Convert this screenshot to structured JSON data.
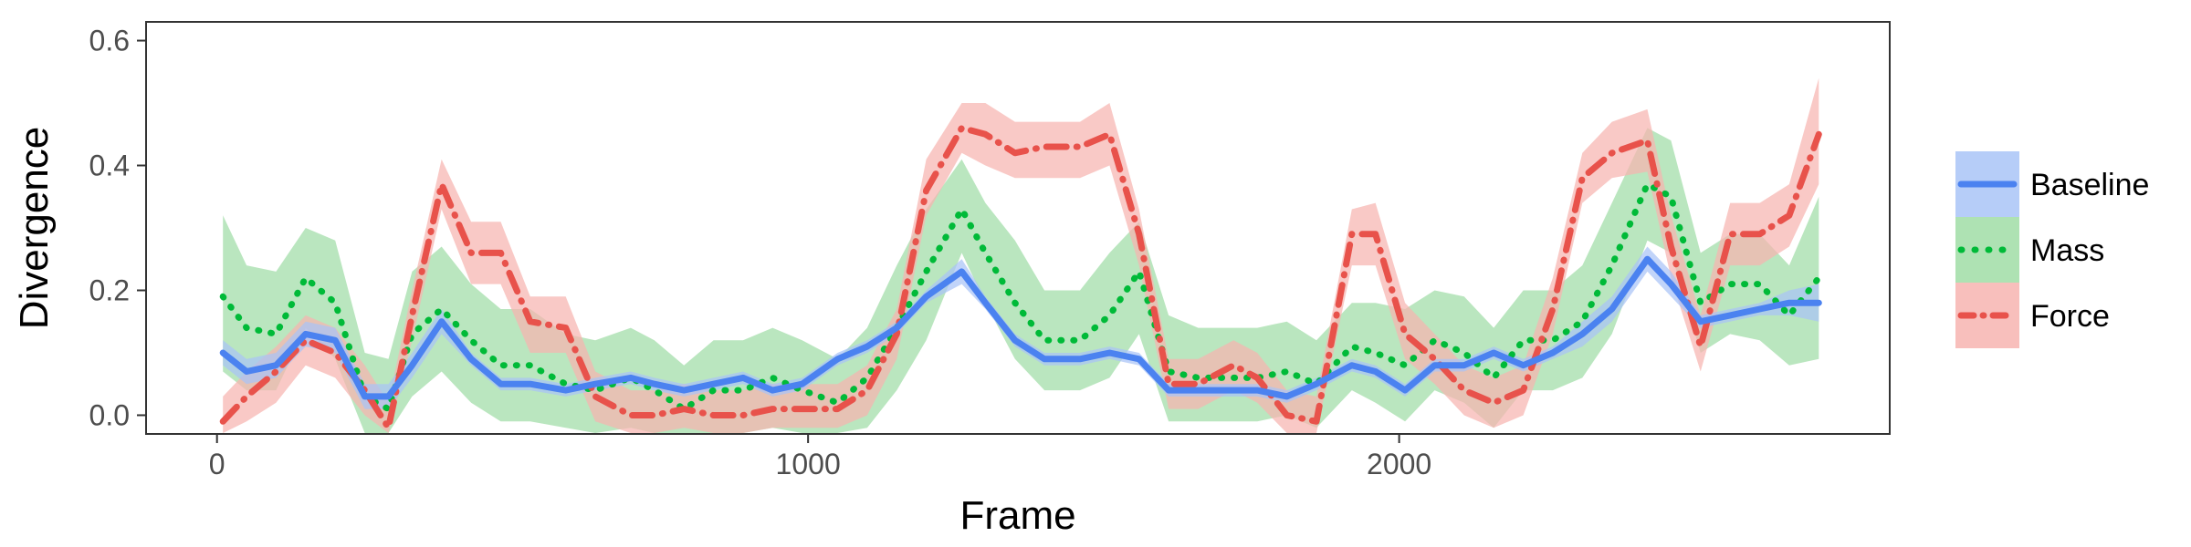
{
  "chart_data": {
    "type": "line",
    "xlabel": "Frame",
    "ylabel": "Divergence",
    "xlim": [
      -120,
      2830
    ],
    "ylim": [
      -0.03,
      0.63
    ],
    "xticks": [
      0,
      1000,
      2000
    ],
    "yticks": [
      0.0,
      0.2,
      0.4,
      0.6
    ],
    "xtick_labels": [
      "0",
      "1000",
      "2000"
    ],
    "ytick_labels": [
      "0.0",
      "0.2",
      "0.4",
      "0.6"
    ],
    "grid": false,
    "legend_position": "right",
    "x": [
      10,
      50,
      100,
      150,
      200,
      250,
      290,
      330,
      380,
      430,
      480,
      530,
      590,
      640,
      700,
      740,
      790,
      840,
      890,
      940,
      990,
      1050,
      1100,
      1150,
      1200,
      1260,
      1300,
      1350,
      1400,
      1460,
      1510,
      1560,
      1610,
      1660,
      1720,
      1760,
      1810,
      1860,
      1920,
      1960,
      2010,
      2060,
      2110,
      2160,
      2210,
      2260,
      2310,
      2360,
      2420,
      2460,
      2510,
      2560,
      2610,
      2660,
      2710
    ],
    "series": [
      {
        "name": "Baseline",
        "color": "#4B82F0",
        "band_color": "#A9C4F7",
        "dash": "solid",
        "values": [
          0.1,
          0.07,
          0.08,
          0.13,
          0.12,
          0.03,
          0.03,
          0.08,
          0.15,
          0.09,
          0.05,
          0.05,
          0.04,
          0.05,
          0.06,
          0.05,
          0.04,
          0.05,
          0.06,
          0.04,
          0.05,
          0.09,
          0.11,
          0.14,
          0.19,
          0.23,
          0.18,
          0.12,
          0.09,
          0.09,
          0.1,
          0.09,
          0.04,
          0.04,
          0.04,
          0.04,
          0.03,
          0.05,
          0.08,
          0.07,
          0.04,
          0.08,
          0.08,
          0.1,
          0.08,
          0.1,
          0.13,
          0.17,
          0.25,
          0.21,
          0.15,
          0.16,
          0.17,
          0.18,
          0.18
        ],
        "lower": [
          0.08,
          0.05,
          0.06,
          0.11,
          0.1,
          0.01,
          0.01,
          0.06,
          0.13,
          0.08,
          0.04,
          0.04,
          0.03,
          0.04,
          0.05,
          0.04,
          0.03,
          0.04,
          0.05,
          0.03,
          0.04,
          0.08,
          0.1,
          0.13,
          0.18,
          0.21,
          0.17,
          0.11,
          0.08,
          0.08,
          0.09,
          0.08,
          0.03,
          0.03,
          0.03,
          0.03,
          0.02,
          0.04,
          0.07,
          0.06,
          0.03,
          0.07,
          0.07,
          0.09,
          0.07,
          0.09,
          0.11,
          0.15,
          0.23,
          0.19,
          0.14,
          0.15,
          0.16,
          0.16,
          0.15
        ],
        "upper": [
          0.12,
          0.09,
          0.1,
          0.15,
          0.14,
          0.05,
          0.05,
          0.1,
          0.17,
          0.1,
          0.06,
          0.06,
          0.05,
          0.06,
          0.07,
          0.06,
          0.05,
          0.06,
          0.07,
          0.05,
          0.06,
          0.1,
          0.12,
          0.15,
          0.2,
          0.25,
          0.19,
          0.13,
          0.1,
          0.1,
          0.11,
          0.1,
          0.05,
          0.05,
          0.05,
          0.05,
          0.04,
          0.06,
          0.09,
          0.08,
          0.05,
          0.09,
          0.09,
          0.11,
          0.09,
          0.11,
          0.15,
          0.19,
          0.27,
          0.23,
          0.16,
          0.17,
          0.18,
          0.2,
          0.21
        ]
      },
      {
        "name": "Mass",
        "color": "#00BA38",
        "band_color": "#A0DDA6",
        "dash": "dotted",
        "values": [
          0.19,
          0.14,
          0.13,
          0.22,
          0.18,
          0.03,
          0.01,
          0.13,
          0.17,
          0.12,
          0.08,
          0.08,
          0.05,
          0.04,
          0.06,
          0.04,
          0.01,
          0.04,
          0.04,
          0.06,
          0.04,
          0.02,
          0.06,
          0.14,
          0.23,
          0.33,
          0.26,
          0.18,
          0.12,
          0.12,
          0.16,
          0.23,
          0.07,
          0.06,
          0.06,
          0.06,
          0.07,
          0.05,
          0.11,
          0.1,
          0.08,
          0.12,
          0.1,
          0.06,
          0.12,
          0.12,
          0.15,
          0.24,
          0.37,
          0.35,
          0.18,
          0.21,
          0.21,
          0.16,
          0.22
        ],
        "lower": [
          0.07,
          0.04,
          0.04,
          0.14,
          0.09,
          -0.03,
          -0.03,
          0.03,
          0.07,
          0.02,
          -0.01,
          -0.01,
          -0.02,
          -0.03,
          -0.02,
          -0.03,
          -0.03,
          -0.03,
          -0.03,
          -0.02,
          -0.03,
          -0.03,
          -0.02,
          0.04,
          0.12,
          0.26,
          0.18,
          0.09,
          0.04,
          0.04,
          0.06,
          0.13,
          -0.01,
          -0.01,
          -0.01,
          -0.01,
          0.0,
          -0.02,
          0.04,
          0.02,
          -0.01,
          0.04,
          0.02,
          -0.02,
          0.04,
          0.04,
          0.06,
          0.13,
          0.28,
          0.26,
          0.1,
          0.13,
          0.12,
          0.08,
          0.09
        ],
        "upper": [
          0.32,
          0.24,
          0.23,
          0.3,
          0.28,
          0.1,
          0.09,
          0.23,
          0.27,
          0.21,
          0.17,
          0.17,
          0.13,
          0.12,
          0.14,
          0.12,
          0.08,
          0.12,
          0.12,
          0.14,
          0.12,
          0.09,
          0.14,
          0.24,
          0.33,
          0.41,
          0.34,
          0.28,
          0.2,
          0.2,
          0.26,
          0.31,
          0.16,
          0.14,
          0.14,
          0.14,
          0.15,
          0.12,
          0.18,
          0.18,
          0.17,
          0.2,
          0.19,
          0.14,
          0.2,
          0.2,
          0.24,
          0.34,
          0.46,
          0.44,
          0.26,
          0.29,
          0.29,
          0.24,
          0.35
        ]
      },
      {
        "name": "Force",
        "color": "#E8524B",
        "band_color": "#F7B4B0",
        "dash": "dashdot",
        "values": [
          -0.01,
          0.03,
          0.07,
          0.12,
          0.1,
          0.04,
          -0.02,
          0.16,
          0.37,
          0.26,
          0.26,
          0.15,
          0.14,
          0.03,
          0.0,
          0.0,
          0.01,
          0.0,
          0.0,
          0.01,
          0.01,
          0.01,
          0.04,
          0.13,
          0.36,
          0.46,
          0.45,
          0.42,
          0.43,
          0.43,
          0.45,
          0.29,
          0.05,
          0.05,
          0.08,
          0.06,
          0.0,
          -0.01,
          0.29,
          0.29,
          0.13,
          0.09,
          0.04,
          0.02,
          0.04,
          0.17,
          0.38,
          0.42,
          0.44,
          0.27,
          0.11,
          0.29,
          0.29,
          0.32,
          0.45
        ],
        "lower": [
          -0.03,
          -0.01,
          0.02,
          0.08,
          0.06,
          0.0,
          -0.03,
          0.12,
          0.33,
          0.21,
          0.21,
          0.1,
          0.1,
          -0.01,
          -0.03,
          -0.03,
          -0.02,
          -0.03,
          -0.03,
          -0.02,
          -0.02,
          -0.02,
          0.0,
          0.09,
          0.32,
          0.42,
          0.4,
          0.38,
          0.38,
          0.38,
          0.4,
          0.24,
          0.01,
          0.01,
          0.04,
          0.02,
          -0.03,
          -0.03,
          0.24,
          0.24,
          0.09,
          0.05,
          0.0,
          -0.02,
          0.0,
          0.13,
          0.34,
          0.38,
          0.39,
          0.22,
          0.07,
          0.24,
          0.24,
          0.27,
          0.37
        ],
        "upper": [
          0.03,
          0.07,
          0.11,
          0.16,
          0.14,
          0.08,
          0.02,
          0.2,
          0.41,
          0.31,
          0.31,
          0.19,
          0.19,
          0.07,
          0.04,
          0.04,
          0.05,
          0.04,
          0.04,
          0.05,
          0.05,
          0.05,
          0.08,
          0.17,
          0.41,
          0.5,
          0.5,
          0.47,
          0.47,
          0.47,
          0.5,
          0.33,
          0.09,
          0.09,
          0.12,
          0.1,
          0.04,
          0.03,
          0.33,
          0.34,
          0.18,
          0.13,
          0.08,
          0.06,
          0.08,
          0.22,
          0.42,
          0.47,
          0.49,
          0.32,
          0.16,
          0.34,
          0.34,
          0.37,
          0.54
        ]
      }
    ]
  }
}
